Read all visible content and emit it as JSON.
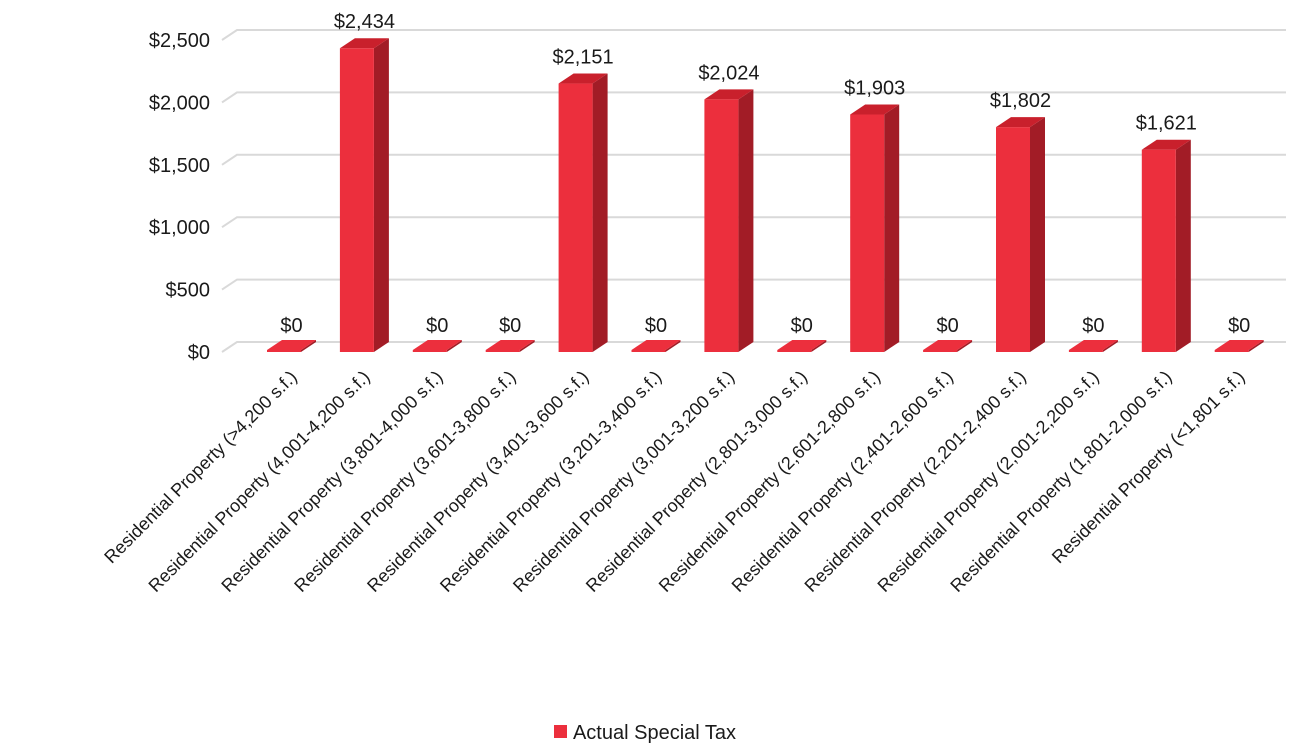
{
  "chart_data": {
    "type": "bar",
    "categories": [
      "Residential Property (>4,200 s.f.)",
      "Residential Property (4,001-4,200 s.f.)",
      "Residential Property (3,801-4,000 s.f.)",
      "Residential Property (3,601-3,800 s.f.)",
      "Residential Property (3,401-3,600 s.f.)",
      "Residential Property (3,201-3,400 s.f.)",
      "Residential Property (3,001-3,200 s.f.)",
      "Residential Property (2,801-3,000 s.f.)",
      "Residential Property (2,601-2,800 s.f.)",
      "Residential Property (2,401-2,600 s.f.)",
      "Residential Property (2,201-2,400 s.f.)",
      "Residential Property (2,001-2,200 s.f.)",
      "Residential Property (1,801-2,000 s.f.)",
      "Residential Property (<1,801 s.f.)"
    ],
    "series": [
      {
        "name": "Actual Special Tax",
        "values": [
          0,
          2434,
          0,
          0,
          2151,
          0,
          2024,
          0,
          1903,
          0,
          1802,
          0,
          1621,
          0
        ],
        "data_labels": [
          "$0",
          "$2,434",
          "$0",
          "$0",
          "$2,151",
          "$0",
          "$2,024",
          "$0",
          "$1,903",
          "$0",
          "$1,802",
          "$0",
          "$1,621",
          "$0"
        ]
      }
    ],
    "yticks": [
      0,
      500,
      1000,
      1500,
      2000,
      2500
    ],
    "ytick_labels": [
      "$0",
      "$500",
      "$1,000",
      "$1,500",
      "$2,000",
      "$2,500"
    ],
    "ylim": [
      0,
      2500
    ],
    "grid": true,
    "legend_position": "bottom",
    "style": "3d-column",
    "colors": {
      "bar_front": "#ec2f3d",
      "bar_side": "#a21c26",
      "bar_top": "#c9202c",
      "grid": "#d9d9d9"
    }
  },
  "legend": {
    "label": "Actual Special Tax"
  }
}
